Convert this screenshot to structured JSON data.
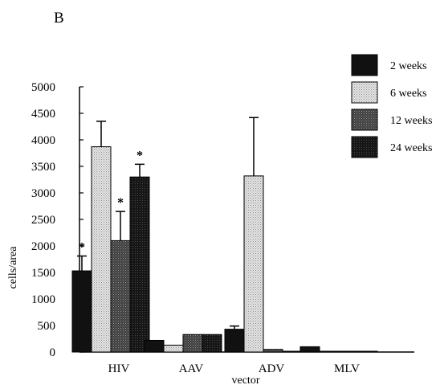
{
  "panel_label": "B",
  "chart_data": {
    "type": "bar",
    "title": "",
    "xlabel": "vector",
    "ylabel": "cells/area",
    "ylim": [
      0,
      5000
    ],
    "yticks": [
      0,
      500,
      1000,
      1500,
      2000,
      2500,
      3000,
      3500,
      4000,
      4500,
      5000
    ],
    "grid": false,
    "legend_position": "right",
    "categories": [
      "HIV",
      "AAV",
      "ADV",
      "MLV"
    ],
    "series": [
      {
        "name": "2 weeks",
        "color": "#111111",
        "pattern": "solid",
        "values": [
          1530,
          220,
          430,
          100
        ],
        "errors": [
          280,
          0,
          60,
          0
        ],
        "significant": [
          true,
          false,
          false,
          false
        ]
      },
      {
        "name": "6 weeks",
        "color": "#d4d4d4",
        "pattern": "dots",
        "values": [
          3870,
          130,
          3320,
          5
        ],
        "errors": [
          480,
          0,
          1100,
          0
        ],
        "significant": [
          false,
          false,
          false,
          false
        ]
      },
      {
        "name": "12 weeks",
        "color": "#555555",
        "pattern": "dense",
        "values": [
          2100,
          330,
          50,
          5
        ],
        "errors": [
          550,
          0,
          0,
          0
        ],
        "significant": [
          true,
          false,
          false,
          false
        ]
      },
      {
        "name": "24 weeks",
        "color": "#222222",
        "pattern": "dark",
        "values": [
          3300,
          330,
          5,
          5
        ],
        "errors": [
          240,
          0,
          0,
          0
        ],
        "significant": [
          true,
          false,
          false,
          false
        ]
      }
    ],
    "significance_marker": "*"
  }
}
